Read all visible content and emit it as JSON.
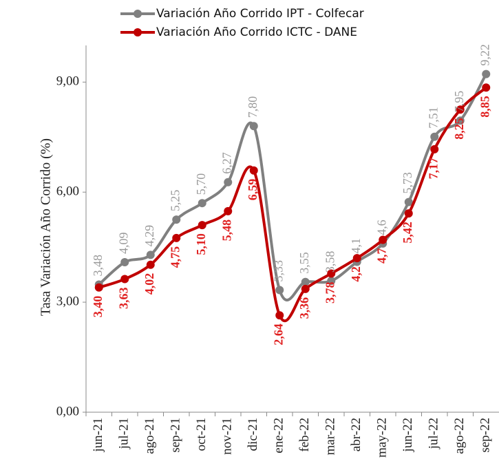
{
  "chart_data": {
    "type": "line",
    "y_label": "Tasa Variación Año Corrido (%)",
    "categories": [
      "jun-21",
      "jul-21",
      "ago-21",
      "sep-21",
      "oct-21",
      "nov-21",
      "dic-21",
      "ene-22",
      "feb-22",
      "mar-22",
      "abr-22",
      "may-22",
      "jun-22",
      "jul-22",
      "ago-22",
      "sep-22"
    ],
    "series": [
      {
        "name": "Variación Año Corrido IPT - Colfecar",
        "color": "#808080",
        "values": [
          3.48,
          4.09,
          4.29,
          5.25,
          5.7,
          6.27,
          7.8,
          3.33,
          3.55,
          3.58,
          4.1,
          4.6,
          5.73,
          7.51,
          7.95,
          9.22
        ],
        "value_labels": [
          "3,48",
          "4,09",
          "4,29",
          "5,25",
          "5,70",
          "6,27",
          "7,80",
          "3,33",
          "3,55",
          "3,58",
          "4,1",
          "4,6",
          "5,73",
          "7,51",
          "7,95",
          "9,22"
        ]
      },
      {
        "name": "Variación Año Corrido ICTC - DANE",
        "color": "#c00000",
        "values": [
          3.4,
          3.63,
          4.02,
          4.75,
          5.1,
          5.48,
          6.59,
          2.64,
          3.36,
          3.78,
          4.2,
          4.7,
          5.42,
          7.17,
          8.25,
          8.85
        ],
        "value_labels": [
          "3,40",
          "3,63",
          "4,02",
          "4,75",
          "5,10",
          "5,48",
          "6,59",
          "2,64",
          "3,36",
          "3,78",
          "4,2",
          "4,7",
          "5,42",
          "7,17",
          "8,25",
          "8,85"
        ]
      }
    ],
    "ylim": [
      0,
      10
    ],
    "yticks": [
      {
        "value": 0,
        "label": "0,00"
      },
      {
        "value": 3,
        "label": "3,00"
      },
      {
        "value": 6,
        "label": "6,00"
      },
      {
        "value": 9,
        "label": "9,00"
      }
    ]
  }
}
